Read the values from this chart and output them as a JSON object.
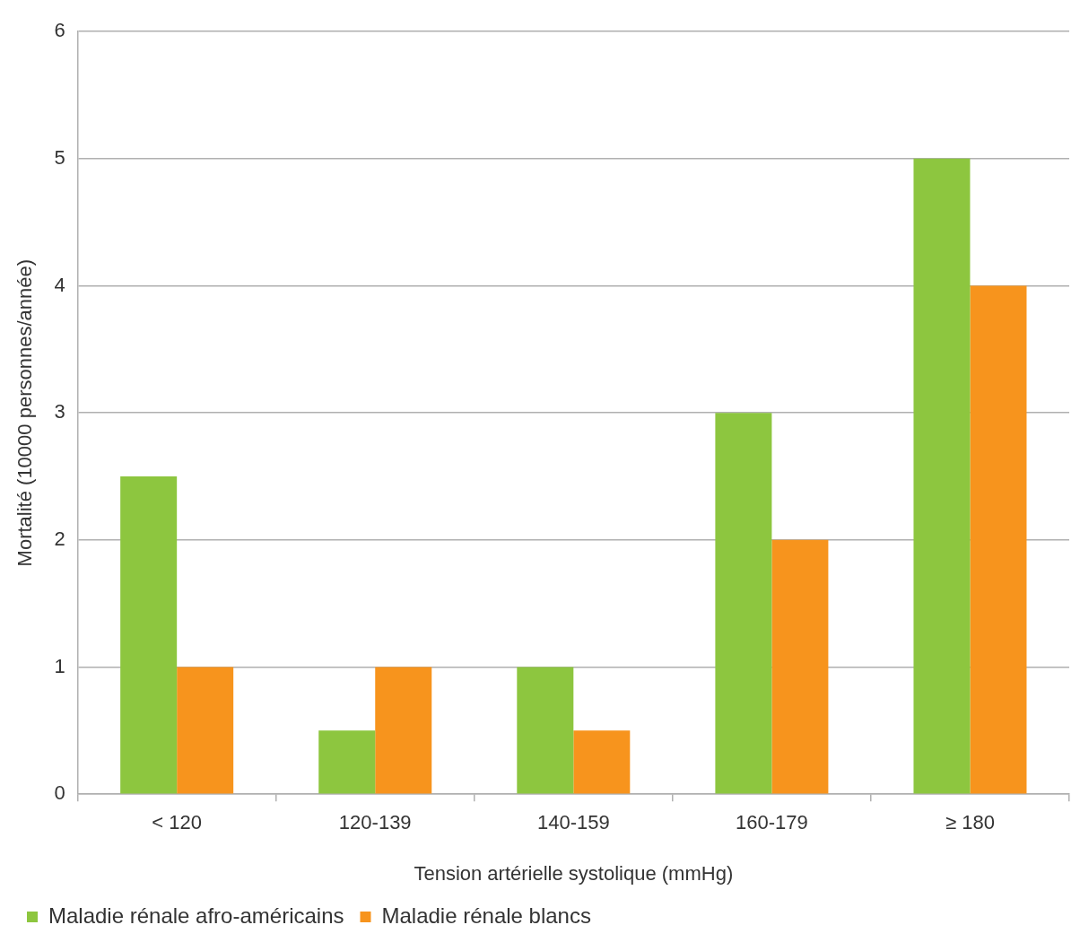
{
  "chart_data": {
    "type": "bar",
    "xlabel": "Tension artérielle systolique (mmHg)",
    "ylabel": "Mortalité (10000 personnes/année)",
    "categories": [
      "< 120",
      "120-139",
      "140-159",
      "160-179",
      "≥ 180"
    ],
    "series": [
      {
        "name": "Maladie rénale afro-américains",
        "color": "#8dc63f",
        "values": [
          2.5,
          0.5,
          1,
          3,
          5
        ]
      },
      {
        "name": "Maladie rénale blancs",
        "color": "#f7941d",
        "values": [
          1,
          1,
          0.5,
          2,
          4
        ]
      }
    ],
    "ylim": [
      0,
      6
    ],
    "yticks": [
      0,
      1,
      2,
      3,
      4,
      5,
      6
    ],
    "grid": "y",
    "legend": "bottom left"
  }
}
